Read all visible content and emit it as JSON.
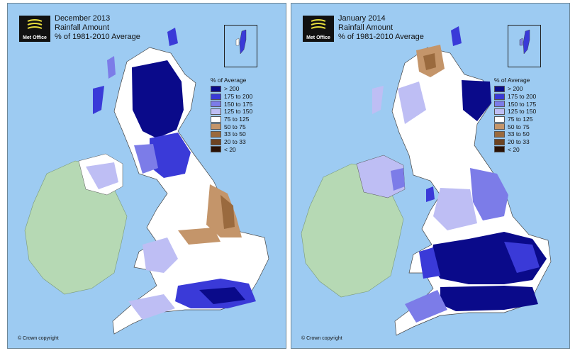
{
  "legend": {
    "title": "% of Average",
    "items": [
      {
        "label": "> 200",
        "color": "#0a0a8a"
      },
      {
        "label": "175 to 200",
        "color": "#3a3ad8"
      },
      {
        "label": "150 to 175",
        "color": "#7c7ce8"
      },
      {
        "label": "125 to 150",
        "color": "#bebef4"
      },
      {
        "label": "75 to 125",
        "color": "#ffffff"
      },
      {
        "label": "50 to 75",
        "color": "#c4956a"
      },
      {
        "label": "33 to 50",
        "color": "#9a6a3e"
      },
      {
        "label": "20 to 33",
        "color": "#6e4422"
      },
      {
        "label": "< 20",
        "color": "#2a1206"
      }
    ]
  },
  "maps": [
    {
      "title": "December 2013",
      "subtitle": "Rainfall Amount",
      "subtitle2": "% of 1981-2010 Average",
      "logo_text": "Met Office",
      "copyright": "© Crown copyright"
    },
    {
      "title": "January 2014",
      "subtitle": "Rainfall Amount",
      "subtitle2": "% of 1981-2010 Average",
      "logo_text": "Met Office",
      "copyright": "© Crown copyright"
    }
  ],
  "colors": {
    "sea": "#9dcbf2",
    "ireland": "#b6d9b4",
    "neutral_land": "#ffffff"
  }
}
